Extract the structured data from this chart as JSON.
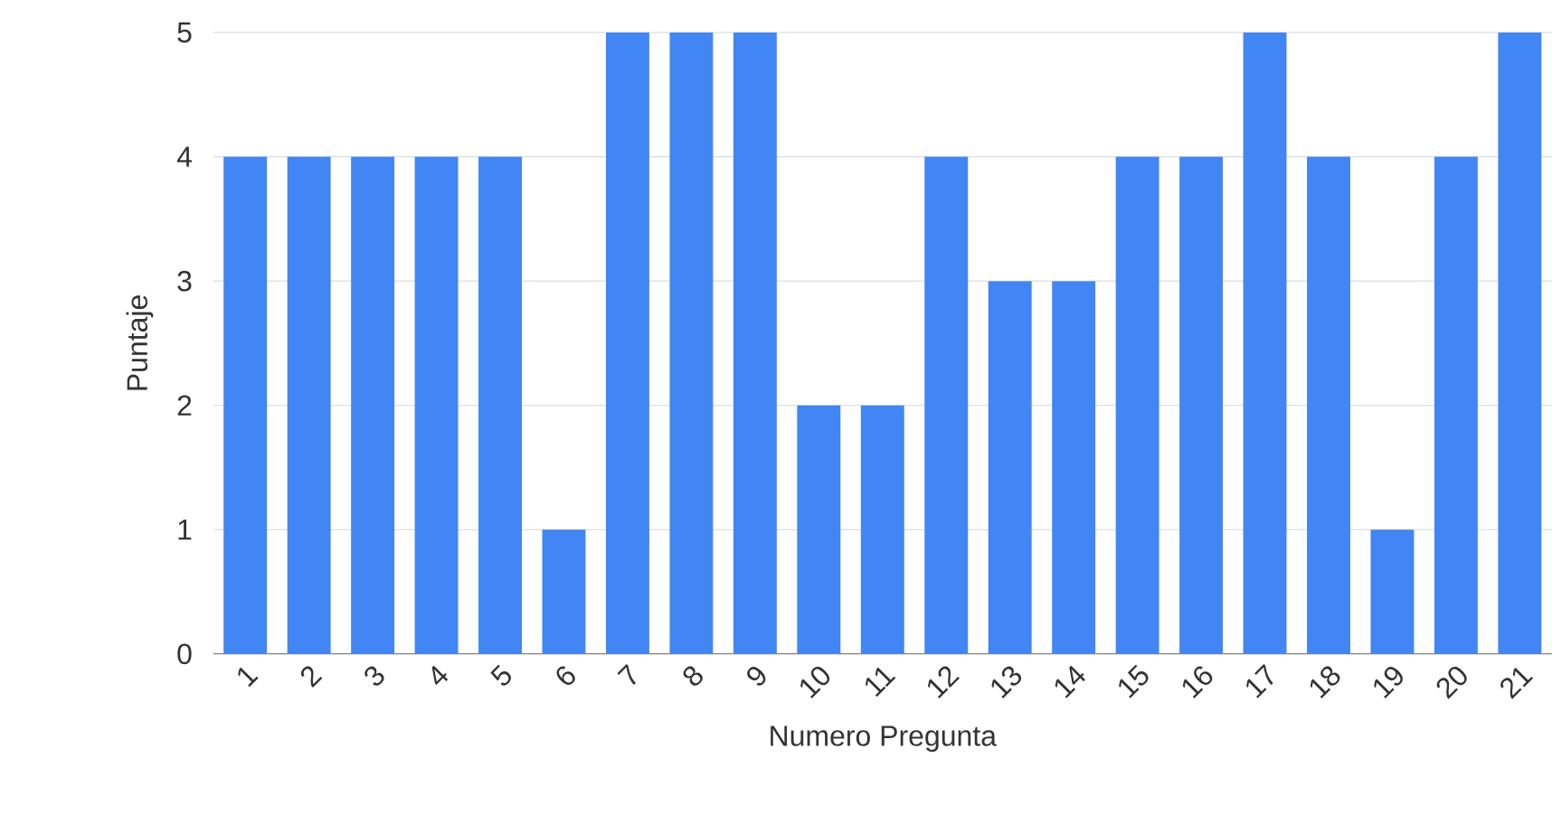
{
  "chart_data": {
    "type": "bar",
    "xlabel": "Numero Pregunta",
    "ylabel": "Puntaje",
    "categories": [
      "1",
      "2",
      "3",
      "4",
      "5",
      "6",
      "7",
      "8",
      "9",
      "10",
      "11",
      "12",
      "13",
      "14",
      "15",
      "16",
      "17",
      "18",
      "19",
      "20",
      "21"
    ],
    "values": [
      4,
      4,
      4,
      4,
      4,
      1,
      5,
      5,
      5,
      2,
      2,
      4,
      3,
      3,
      4,
      4,
      5,
      4,
      1,
      4,
      5
    ],
    "color": "#4285f4",
    "ylim": [
      0,
      5
    ],
    "yticks": [
      0,
      1,
      2,
      3,
      4,
      5
    ],
    "grid": "y"
  }
}
